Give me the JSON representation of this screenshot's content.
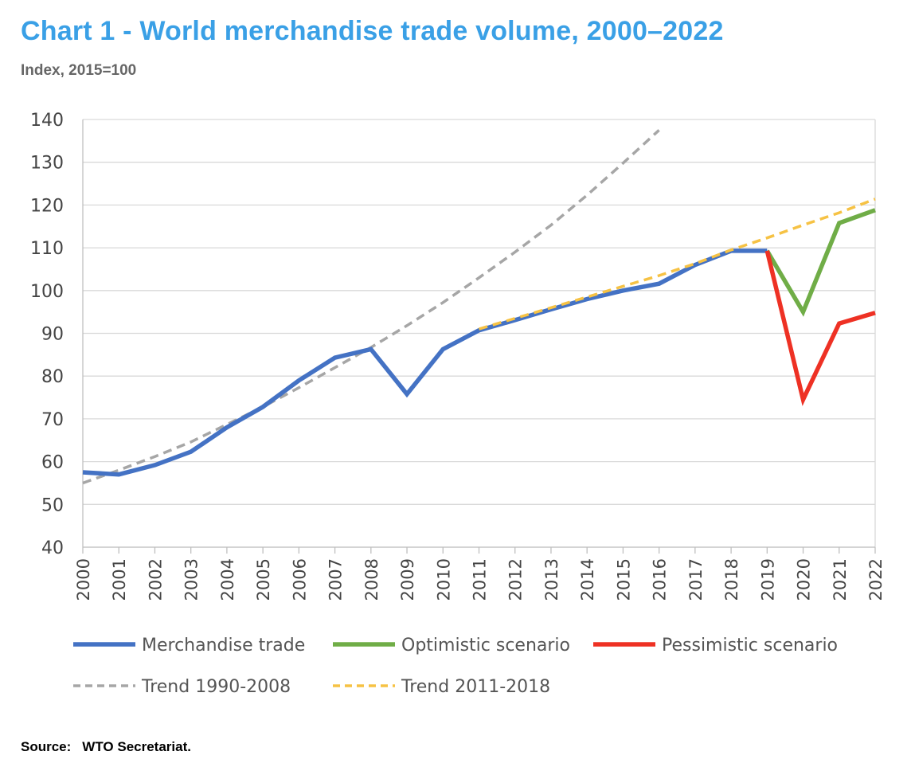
{
  "title": "Chart 1 - World merchandise trade volume, 2000–2022",
  "subtitle": "Index, 2015=100",
  "source": {
    "label": "Source:",
    "value": "WTO Secretariat."
  },
  "colors": {
    "title": "#3aa0e6",
    "merchandise": "#4472c4",
    "optimistic": "#70ad47",
    "pessimistic": "#ee3124",
    "trend_1990_2008": "#a6a6a6",
    "trend_2011_2018": "#f6c244",
    "grid": "#d9d9d9"
  },
  "chart_data": {
    "type": "line",
    "title": "Chart 1 - World merchandise trade volume, 2000–2022",
    "subtitle": "Index, 2015=100",
    "xlabel": "",
    "ylabel": "",
    "ylim": [
      40,
      140
    ],
    "yticks": [
      40,
      50,
      60,
      70,
      80,
      90,
      100,
      110,
      120,
      130,
      140
    ],
    "categories": [
      "2000",
      "2001",
      "2002",
      "2003",
      "2004",
      "2005",
      "2006",
      "2007",
      "2008",
      "2009",
      "2010",
      "2011",
      "2012",
      "2013",
      "2014",
      "2015",
      "2016",
      "2017",
      "2018",
      "2019",
      "2020",
      "2021",
      "2022"
    ],
    "grid": "horizontal",
    "legend_position": "bottom",
    "series": [
      {
        "name": "Merchandise trade",
        "style": "solid",
        "x": [
          "2000",
          "2001",
          "2002",
          "2003",
          "2004",
          "2005",
          "2006",
          "2007",
          "2008",
          "2009",
          "2010",
          "2011",
          "2012",
          "2013",
          "2014",
          "2015",
          "2016",
          "2017",
          "2018",
          "2019"
        ],
        "values": [
          57.5,
          57.0,
          59.2,
          62.3,
          68.0,
          72.8,
          79.0,
          84.3,
          86.3,
          75.8,
          86.3,
          90.7,
          93.1,
          95.6,
          98.0,
          100.0,
          101.6,
          106.0,
          109.3,
          109.3
        ]
      },
      {
        "name": "Optimistic scenario",
        "style": "solid",
        "x": [
          "2019",
          "2020",
          "2021",
          "2022"
        ],
        "values": [
          109.3,
          95.0,
          115.8,
          118.8
        ]
      },
      {
        "name": "Pessimistic scenario",
        "style": "solid",
        "x": [
          "2019",
          "2020",
          "2021",
          "2022"
        ],
        "values": [
          109.3,
          74.5,
          92.3,
          94.8
        ]
      },
      {
        "name": "Trend 1990-2008",
        "style": "dashed",
        "x": [
          "2000",
          "2001",
          "2002",
          "2003",
          "2004",
          "2005",
          "2006",
          "2007",
          "2008",
          "2009",
          "2010",
          "2011",
          "2012",
          "2013",
          "2014",
          "2015",
          "2016"
        ],
        "values": [
          55.0,
          58.0,
          61.2,
          64.6,
          68.7,
          72.8,
          77.3,
          82.0,
          86.7,
          91.8,
          97.2,
          103.0,
          109.0,
          115.3,
          122.3,
          129.8,
          137.5
        ]
      },
      {
        "name": "Trend 2011-2018",
        "style": "dashed",
        "x": [
          "2011",
          "2012",
          "2013",
          "2014",
          "2015",
          "2016",
          "2017",
          "2018",
          "2019",
          "2020",
          "2021",
          "2022"
        ],
        "values": [
          91.0,
          93.5,
          96.0,
          98.5,
          101.0,
          103.5,
          106.3,
          109.5,
          112.3,
          115.3,
          118.2,
          121.4
        ]
      }
    ]
  }
}
